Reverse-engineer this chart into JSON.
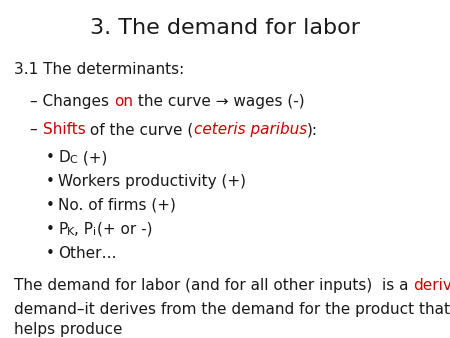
{
  "title": "3. The demand for labor",
  "background_color": "#ffffff",
  "title_fontsize": 16,
  "body_fontsize": 11,
  "small_fontsize": 8,
  "text_color": "#1a1a1a",
  "red_color": "#cc0000",
  "figsize": [
    4.5,
    3.38
  ],
  "dpi": 100
}
